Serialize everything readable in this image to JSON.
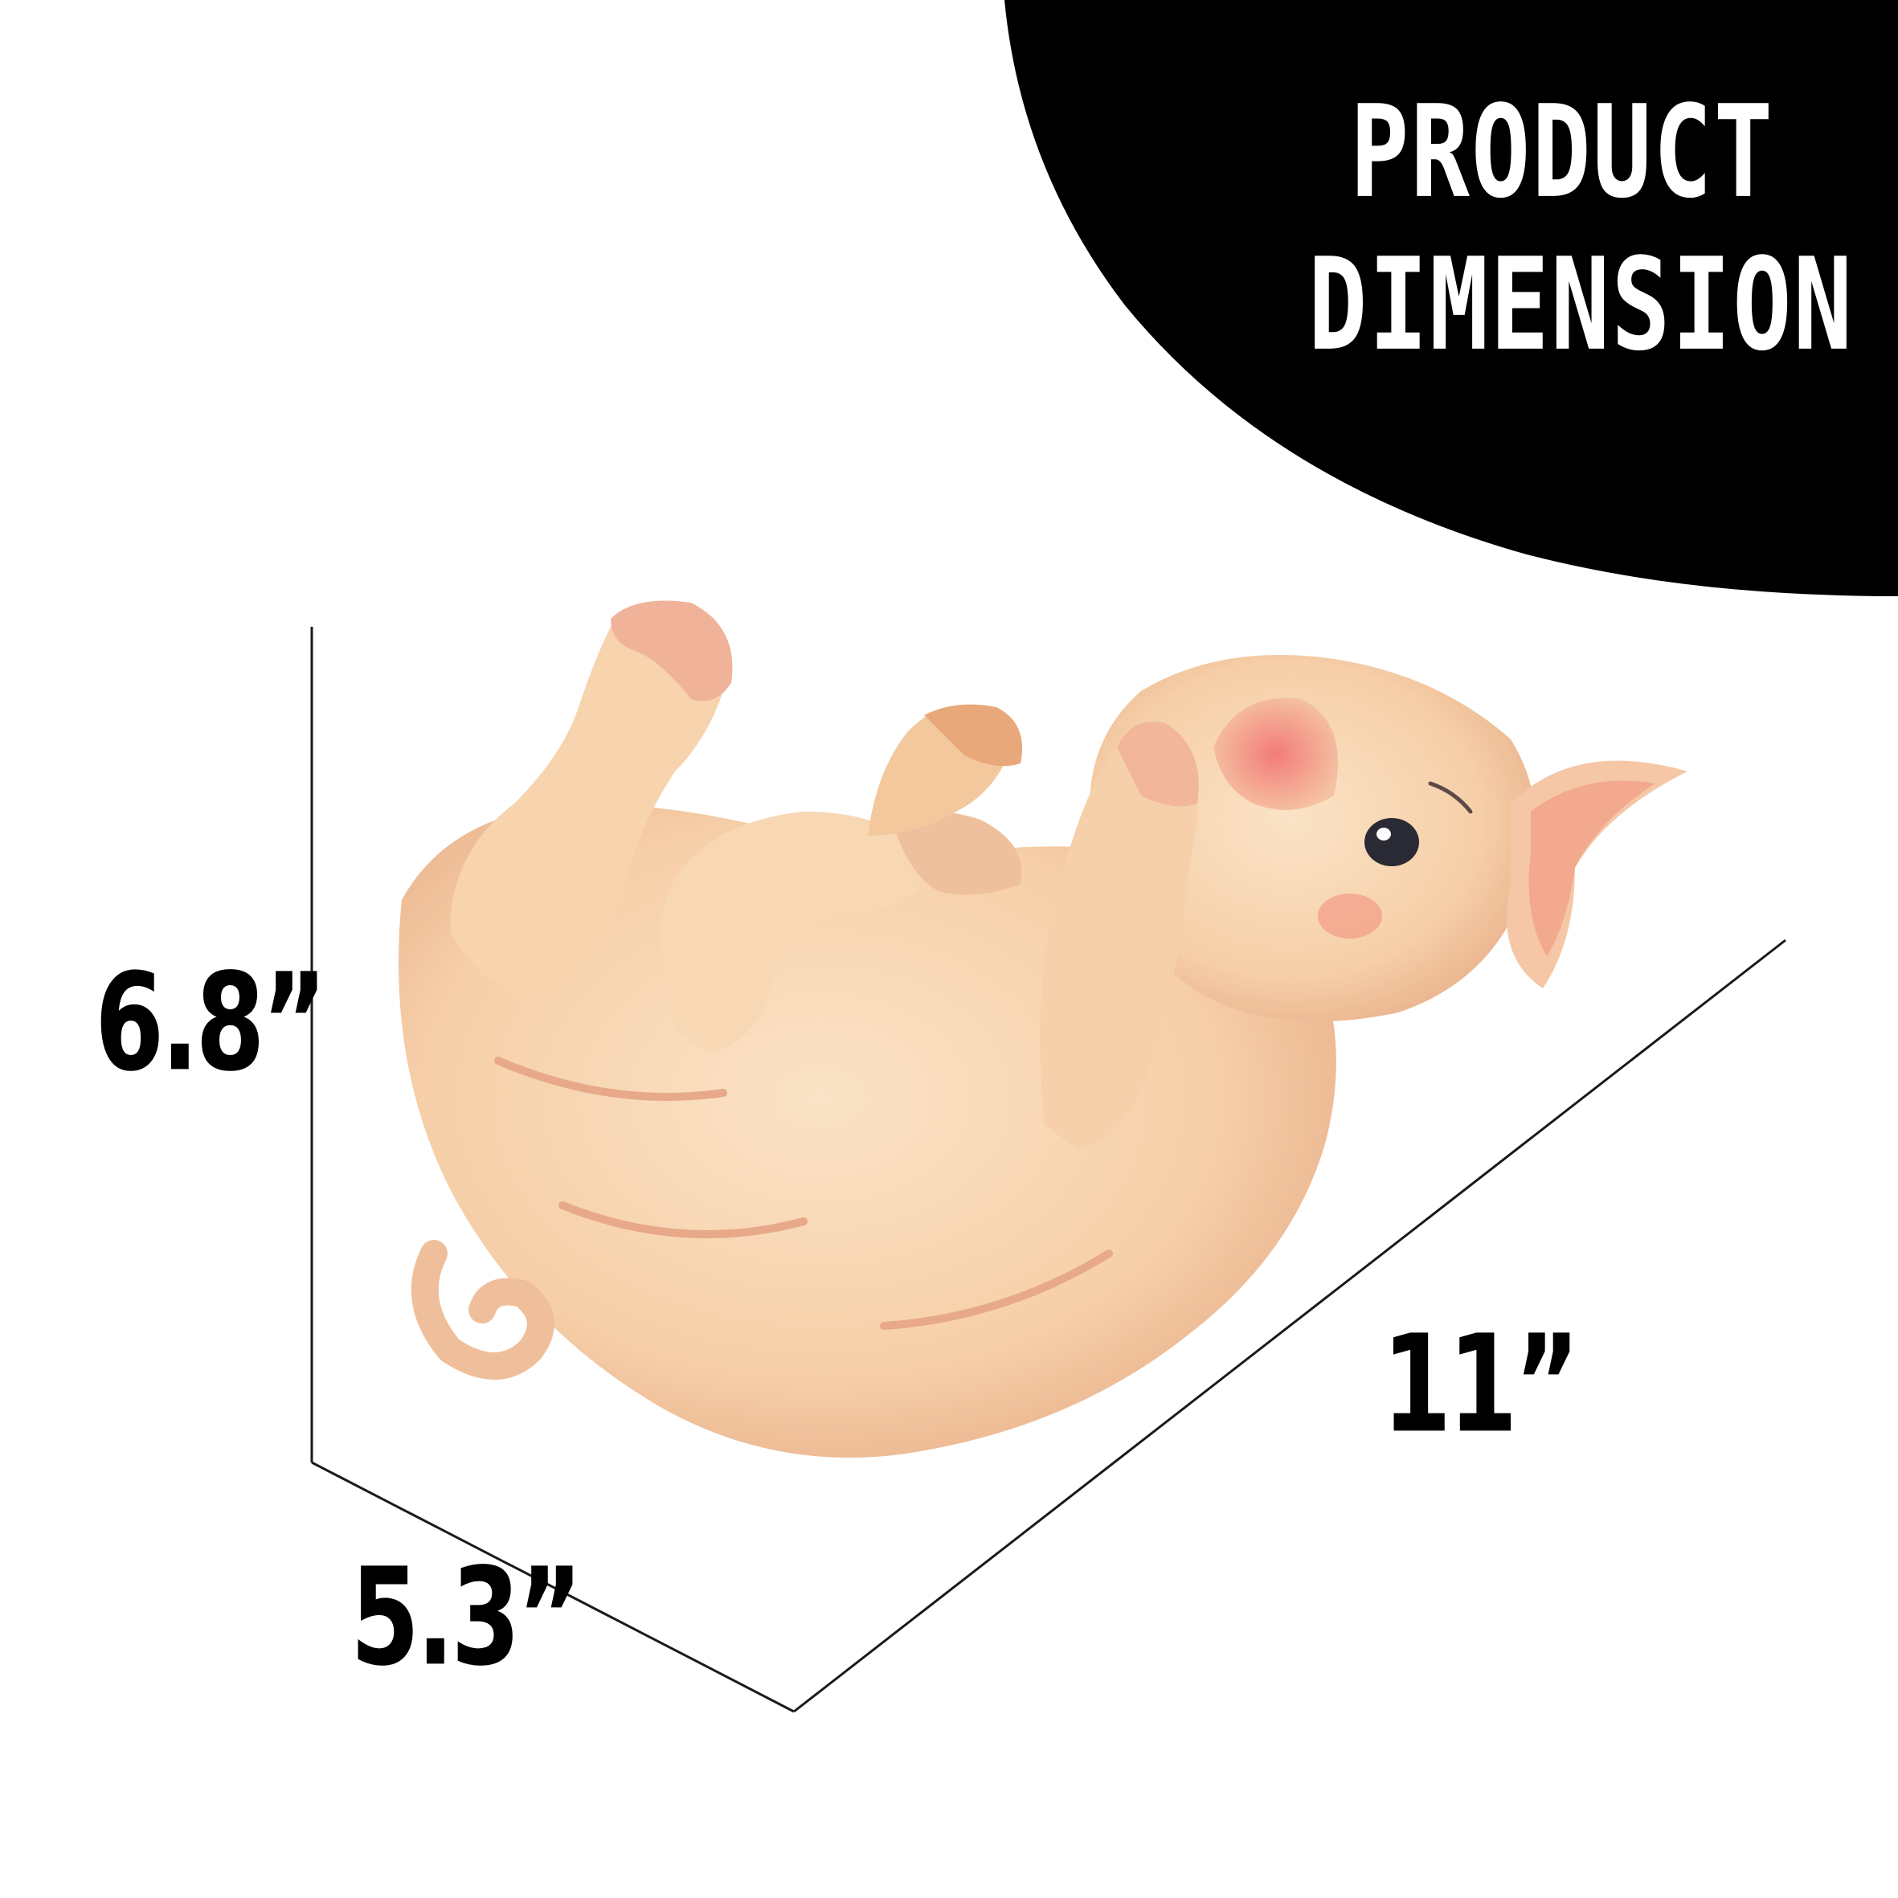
{
  "badge": {
    "line1": "PRODUCT",
    "line2": "DIMENSION"
  },
  "dimensions": {
    "height": "6.8”",
    "depth": "5.3”",
    "length": "11”"
  },
  "colors": {
    "badge_fill": "#000000",
    "pig_body": "#f7d2ad",
    "pig_shadow": "#e9ad8c",
    "pig_blush": "#f08a80",
    "line": "#1a1a1a"
  }
}
